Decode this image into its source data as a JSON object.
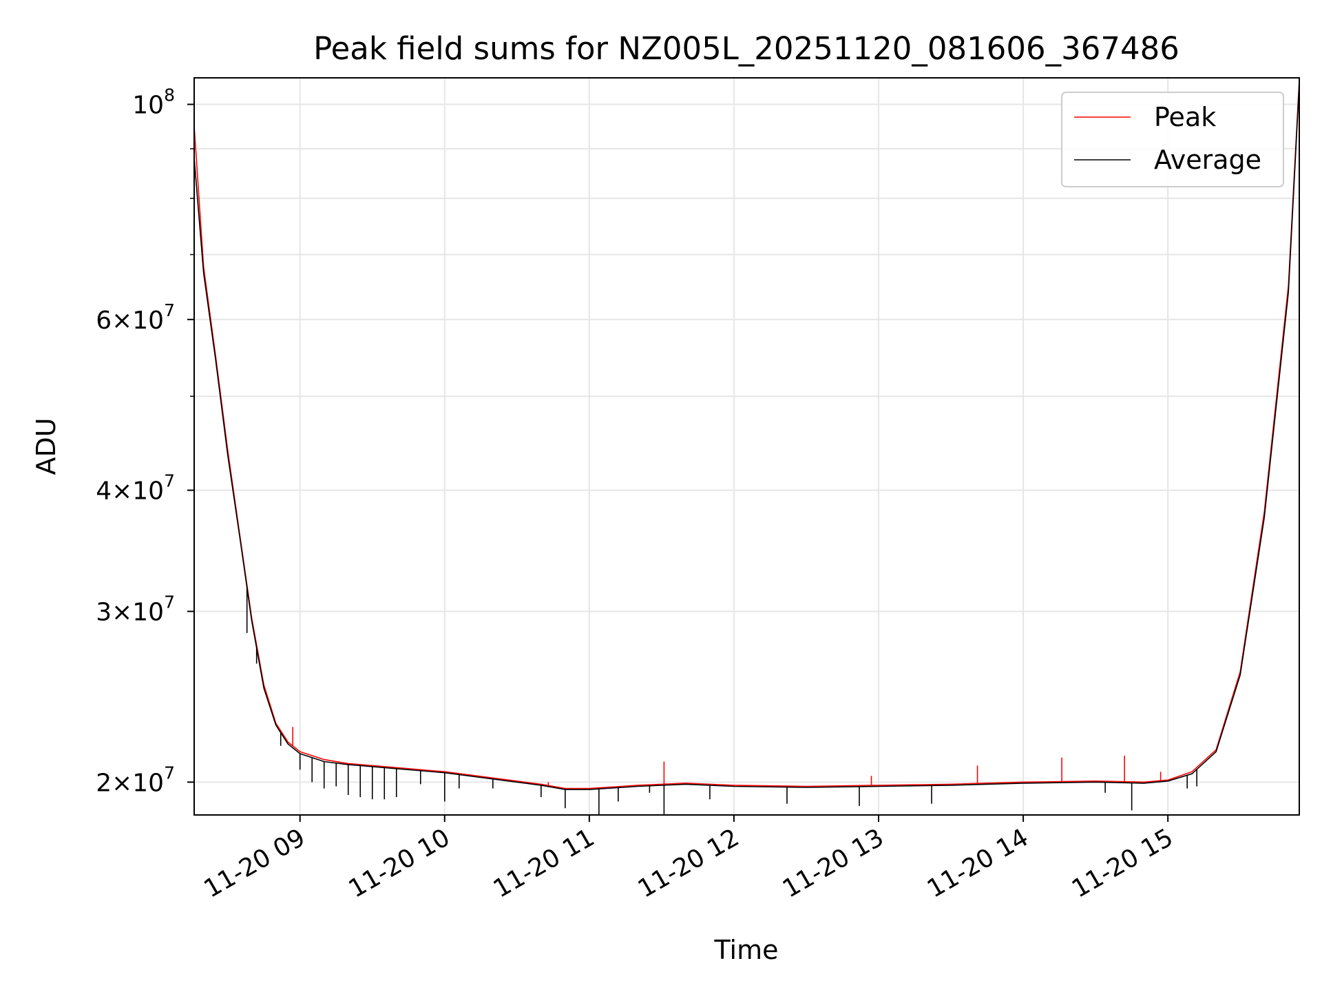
{
  "chart_data": {
    "type": "line",
    "title": "Peak field sums for NZ005L_20251120_081606_367486",
    "xlabel": "Time",
    "ylabel": "ADU",
    "yscale": "log",
    "ylim": [
      18500000,
      106500000
    ],
    "xlim": [
      "2025-11-20 08:16:06",
      "2025-11-20 15:54:30"
    ],
    "grid": true,
    "legend": "upper right",
    "x_ticks": [
      {
        "value": "2025-11-20 09:00",
        "label": "11-20 09"
      },
      {
        "value": "2025-11-20 10:00",
        "label": "11-20 10"
      },
      {
        "value": "2025-11-20 11:00",
        "label": "11-20 11"
      },
      {
        "value": "2025-11-20 12:00",
        "label": "11-20 12"
      },
      {
        "value": "2025-11-20 13:00",
        "label": "11-20 13"
      },
      {
        "value": "2025-11-20 14:00",
        "label": "11-20 14"
      },
      {
        "value": "2025-11-20 15:00",
        "label": "11-20 15"
      }
    ],
    "y_ticks": [
      {
        "value": 20000000,
        "mantissa": "2",
        "exponent": "7"
      },
      {
        "value": 30000000,
        "mantissa": "3",
        "exponent": "7"
      },
      {
        "value": 40000000,
        "mantissa": "4",
        "exponent": "7"
      },
      {
        "value": 60000000,
        "mantissa": "6",
        "exponent": "7"
      },
      {
        "value": 100000000,
        "mantissa": "",
        "exponent": "8"
      }
    ],
    "series": [
      {
        "name": "Peak",
        "color": "#ff0000",
        "x": [
          "2025-11-20 08:16:06",
          "2025-11-20 08:20",
          "2025-11-20 08:25",
          "2025-11-20 08:30",
          "2025-11-20 08:35",
          "2025-11-20 08:40",
          "2025-11-20 08:45",
          "2025-11-20 08:50",
          "2025-11-20 08:55",
          "2025-11-20 09:00",
          "2025-11-20 09:10",
          "2025-11-20 09:20",
          "2025-11-20 09:40",
          "2025-11-20 10:00",
          "2025-11-20 10:20",
          "2025-11-20 10:40",
          "2025-11-20 10:50",
          "2025-11-20 11:00",
          "2025-11-20 11:20",
          "2025-11-20 11:40",
          "2025-11-20 12:00",
          "2025-11-20 12:30",
          "2025-11-20 13:00",
          "2025-11-20 13:30",
          "2025-11-20 14:00",
          "2025-11-20 14:30",
          "2025-11-20 14:50",
          "2025-11-20 15:00",
          "2025-11-20 15:10",
          "2025-11-20 15:20",
          "2025-11-20 15:30",
          "2025-11-20 15:40",
          "2025-11-20 15:50",
          "2025-11-20 15:54:30"
        ],
        "values": [
          95000000,
          68000000,
          55000000,
          44000000,
          36000000,
          29500000,
          25200000,
          23000000,
          22000000,
          21500000,
          21100000,
          20900000,
          20700000,
          20500000,
          20200000,
          19900000,
          19700000,
          19700000,
          19850000,
          19950000,
          19850000,
          19800000,
          19850000,
          19900000,
          20000000,
          20050000,
          20000000,
          20100000,
          20500000,
          21600000,
          26000000,
          38000000,
          65000000,
          106000000
        ],
        "spikes": [
          {
            "x": "2025-11-20 08:57",
            "value": 22800000
          },
          {
            "x": "2025-11-20 10:43",
            "value": 20000000
          },
          {
            "x": "2025-11-20 11:31",
            "value": 21000000
          },
          {
            "x": "2025-11-20 12:57",
            "value": 20300000
          },
          {
            "x": "2025-11-20 13:41",
            "value": 20800000
          },
          {
            "x": "2025-11-20 14:16",
            "value": 21200000
          },
          {
            "x": "2025-11-20 14:42",
            "value": 21300000
          },
          {
            "x": "2025-11-20 14:57",
            "value": 20500000
          }
        ]
      },
      {
        "name": "Average",
        "color": "#000000",
        "x": [
          "2025-11-20 08:16:06",
          "2025-11-20 08:20",
          "2025-11-20 08:25",
          "2025-11-20 08:30",
          "2025-11-20 08:35",
          "2025-11-20 08:40",
          "2025-11-20 08:45",
          "2025-11-20 08:50",
          "2025-11-20 08:55",
          "2025-11-20 09:00",
          "2025-11-20 09:10",
          "2025-11-20 09:20",
          "2025-11-20 09:40",
          "2025-11-20 10:00",
          "2025-11-20 10:20",
          "2025-11-20 10:40",
          "2025-11-20 10:50",
          "2025-11-20 11:00",
          "2025-11-20 11:20",
          "2025-11-20 11:40",
          "2025-11-20 12:00",
          "2025-11-20 12:30",
          "2025-11-20 13:00",
          "2025-11-20 13:30",
          "2025-11-20 14:00",
          "2025-11-20 14:30",
          "2025-11-20 14:50",
          "2025-11-20 15:00",
          "2025-11-20 15:10",
          "2025-11-20 15:20",
          "2025-11-20 15:30",
          "2025-11-20 15:40",
          "2025-11-20 15:50",
          "2025-11-20 15:54:30"
        ],
        "values": [
          88000000,
          67000000,
          54500000,
          43500000,
          35800000,
          29300000,
          25000000,
          22900000,
          21900000,
          21400000,
          21000000,
          20850000,
          20650000,
          20450000,
          20150000,
          19850000,
          19650000,
          19650000,
          19800000,
          19900000,
          19800000,
          19750000,
          19800000,
          19850000,
          19950000,
          20000000,
          19950000,
          20050000,
          20400000,
          21500000,
          25800000,
          37500000,
          64000000,
          105000000
        ],
        "spikes": [
          {
            "x": "2025-11-20 08:38",
            "value": 28500000
          },
          {
            "x": "2025-11-20 08:42",
            "value": 26500000
          },
          {
            "x": "2025-11-20 08:52",
            "value": 21800000
          },
          {
            "x": "2025-11-20 09:00",
            "value": 20600000
          },
          {
            "x": "2025-11-20 09:05",
            "value": 20000000
          },
          {
            "x": "2025-11-20 09:10",
            "value": 19700000
          },
          {
            "x": "2025-11-20 09:15",
            "value": 19800000
          },
          {
            "x": "2025-11-20 09:20",
            "value": 19400000
          },
          {
            "x": "2025-11-20 09:25",
            "value": 19300000
          },
          {
            "x": "2025-11-20 09:30",
            "value": 19200000
          },
          {
            "x": "2025-11-20 09:35",
            "value": 19200000
          },
          {
            "x": "2025-11-20 09:40",
            "value": 19300000
          },
          {
            "x": "2025-11-20 09:50",
            "value": 19900000
          },
          {
            "x": "2025-11-20 10:00",
            "value": 19100000
          },
          {
            "x": "2025-11-20 10:06",
            "value": 19700000
          },
          {
            "x": "2025-11-20 10:20",
            "value": 19700000
          },
          {
            "x": "2025-11-20 10:40",
            "value": 19300000
          },
          {
            "x": "2025-11-20 10:50",
            "value": 18800000
          },
          {
            "x": "2025-11-20 11:04",
            "value": 18500000
          },
          {
            "x": "2025-11-20 11:12",
            "value": 19100000
          },
          {
            "x": "2025-11-20 11:25",
            "value": 19500000
          },
          {
            "x": "2025-11-20 11:31",
            "value": 18500000
          },
          {
            "x": "2025-11-20 11:50",
            "value": 19200000
          },
          {
            "x": "2025-11-20 12:22",
            "value": 19000000
          },
          {
            "x": "2025-11-20 12:52",
            "value": 18900000
          },
          {
            "x": "2025-11-20 13:22",
            "value": 19000000
          },
          {
            "x": "2025-11-20 14:34",
            "value": 19500000
          },
          {
            "x": "2025-11-20 14:45",
            "value": 18700000
          },
          {
            "x": "2025-11-20 15:08",
            "value": 19700000
          },
          {
            "x": "2025-11-20 15:12",
            "value": 19800000
          }
        ]
      }
    ]
  }
}
